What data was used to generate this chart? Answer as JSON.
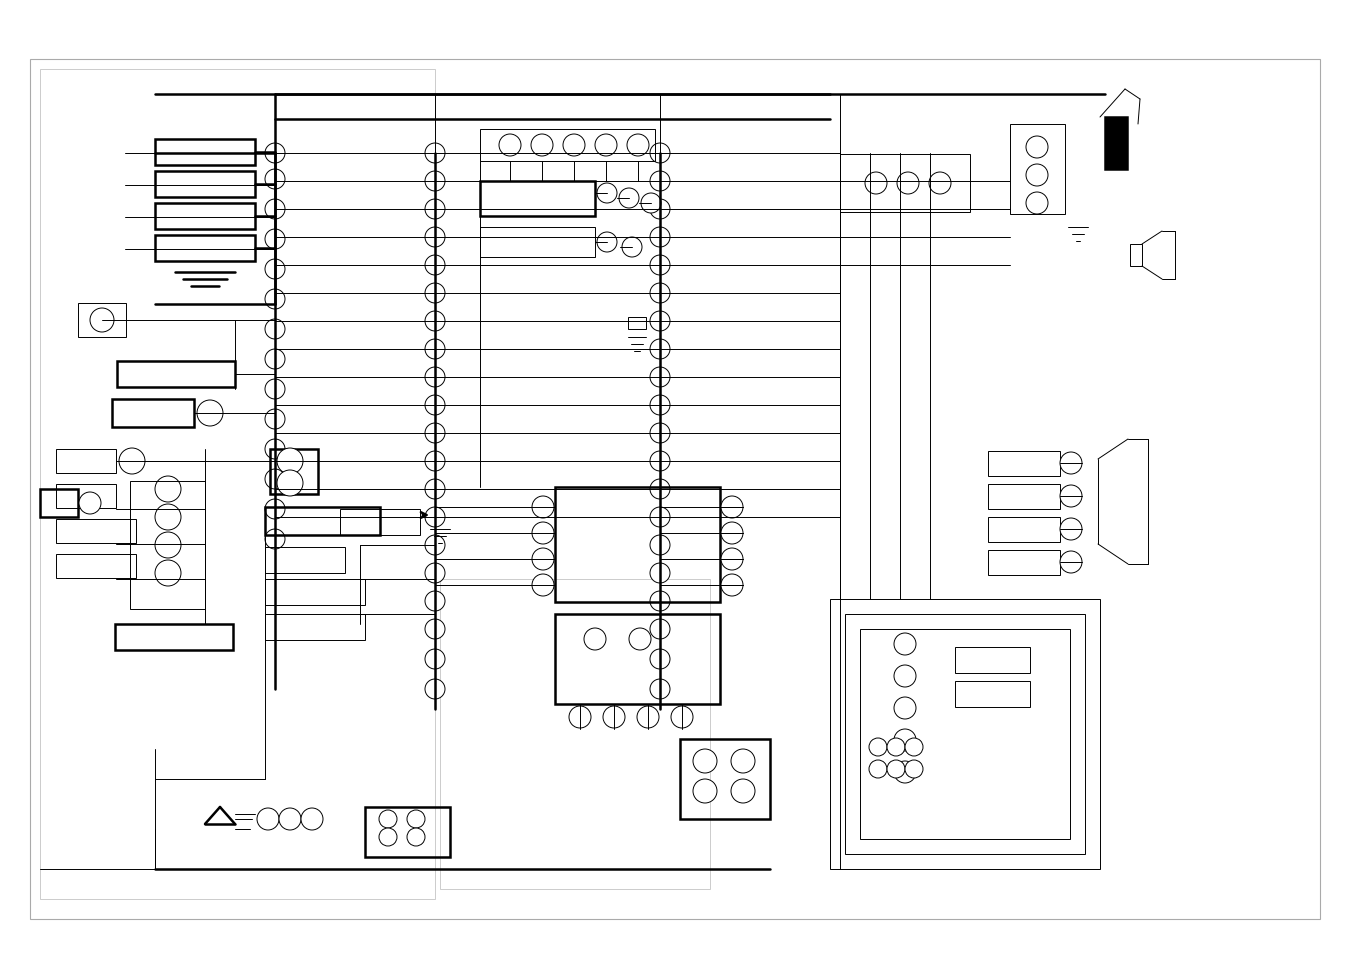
{
  "bg": "#ffffff",
  "lc": "#000000",
  "gray": "#aaaaaa",
  "lgray": "#cccccc",
  "lw1": 0.7,
  "lw2": 1.8,
  "lw3": 1.2
}
